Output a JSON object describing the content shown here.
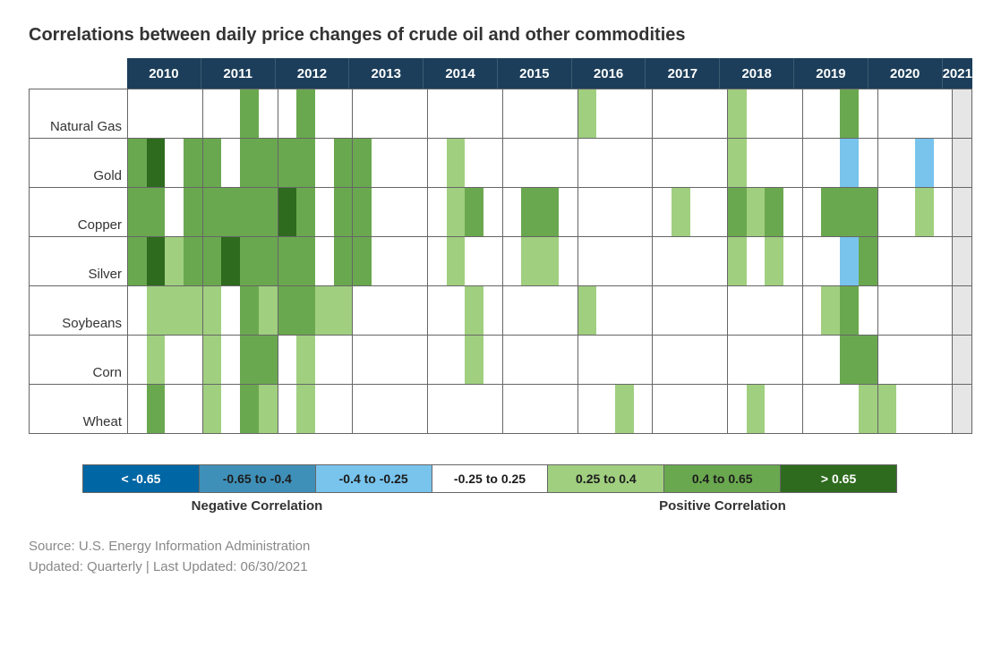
{
  "title": "Correlations between daily price changes of crude oil and other commodities",
  "header_bg": "#1c3e5a",
  "grid_color": "#666666",
  "trailing_bg": "#e6e6e6",
  "color_scale": {
    "very_neg": "#0066a4",
    "neg": "#3f90b8",
    "slight_neg": "#78c4ed",
    "neutral": "#ffffff",
    "slight_pos": "#a0cf7f",
    "pos": "#6aa84f",
    "very_pos": "#2e6b1e"
  },
  "years": [
    "2010",
    "2011",
    "2012",
    "2013",
    "2014",
    "2015",
    "2016",
    "2017",
    "2018",
    "2019",
    "2020",
    "2021"
  ],
  "rows": [
    {
      "label": "Natural Gas",
      "cells": [
        0,
        0,
        0,
        0,
        0,
        0,
        5,
        0,
        0,
        5,
        0,
        0,
        0,
        0,
        0,
        0,
        0,
        0,
        0,
        0,
        0,
        0,
        0,
        0,
        4,
        0,
        0,
        0,
        0,
        0,
        0,
        0,
        4,
        0,
        0,
        0,
        0,
        0,
        5,
        0,
        0,
        0,
        0,
        0,
        0
      ]
    },
    {
      "label": "Gold",
      "cells": [
        5,
        6,
        0,
        5,
        5,
        0,
        5,
        5,
        5,
        5,
        0,
        5,
        5,
        0,
        0,
        0,
        0,
        4,
        0,
        0,
        0,
        0,
        0,
        0,
        0,
        0,
        0,
        0,
        0,
        0,
        0,
        0,
        4,
        0,
        0,
        0,
        0,
        0,
        3,
        0,
        0,
        0,
        3,
        0,
        0
      ]
    },
    {
      "label": "Copper",
      "cells": [
        5,
        5,
        0,
        5,
        5,
        5,
        5,
        5,
        6,
        5,
        0,
        5,
        5,
        0,
        0,
        0,
        0,
        4,
        5,
        0,
        0,
        5,
        5,
        0,
        0,
        0,
        0,
        0,
        0,
        4,
        0,
        0,
        5,
        4,
        5,
        0,
        0,
        5,
        5,
        5,
        0,
        0,
        4,
        0,
        0
      ]
    },
    {
      "label": "Silver",
      "cells": [
        5,
        6,
        4,
        5,
        5,
        6,
        5,
        5,
        5,
        5,
        0,
        5,
        5,
        0,
        0,
        0,
        0,
        4,
        0,
        0,
        0,
        4,
        4,
        0,
        0,
        0,
        0,
        0,
        0,
        0,
        0,
        0,
        4,
        0,
        4,
        0,
        0,
        0,
        3,
        5,
        0,
        0,
        0,
        0,
        0
      ]
    },
    {
      "label": "Soybeans",
      "cells": [
        0,
        4,
        4,
        4,
        4,
        0,
        5,
        4,
        5,
        5,
        4,
        4,
        0,
        0,
        0,
        0,
        0,
        0,
        4,
        0,
        0,
        0,
        0,
        0,
        4,
        0,
        0,
        0,
        0,
        0,
        0,
        0,
        0,
        0,
        0,
        0,
        0,
        4,
        5,
        0,
        0,
        0,
        0,
        0,
        0
      ]
    },
    {
      "label": "Corn",
      "cells": [
        0,
        4,
        0,
        0,
        4,
        0,
        5,
        5,
        0,
        4,
        0,
        0,
        0,
        0,
        0,
        0,
        0,
        0,
        4,
        0,
        0,
        0,
        0,
        0,
        0,
        0,
        0,
        0,
        0,
        0,
        0,
        0,
        0,
        0,
        0,
        0,
        0,
        0,
        5,
        5,
        0,
        0,
        0,
        0,
        0
      ]
    },
    {
      "label": "Wheat",
      "cells": [
        0,
        5,
        0,
        0,
        4,
        0,
        5,
        4,
        0,
        4,
        0,
        0,
        0,
        0,
        0,
        0,
        0,
        0,
        0,
        0,
        0,
        0,
        0,
        0,
        0,
        0,
        4,
        0,
        0,
        0,
        0,
        0,
        0,
        4,
        0,
        0,
        0,
        0,
        0,
        4,
        4,
        0,
        0,
        0,
        0
      ]
    }
  ],
  "quarters_per_year": 4,
  "last_year_quarters": 1,
  "legend": {
    "segments": [
      {
        "label": "< -0.65",
        "bg_key": "very_neg",
        "text": "#ffffff"
      },
      {
        "label": "-0.65 to -0.4",
        "bg_key": "neg",
        "text": "#1c1c1c"
      },
      {
        "label": "-0.4 to -0.25",
        "bg_key": "slight_neg",
        "text": "#1c1c1c"
      },
      {
        "label": "-0.25 to 0.25",
        "bg_key": "neutral",
        "text": "#1c1c1c"
      },
      {
        "label": "0.25 to 0.4",
        "bg_key": "slight_pos",
        "text": "#1c1c1c"
      },
      {
        "label": "0.4 to 0.65",
        "bg_key": "pos",
        "text": "#1c1c1c"
      },
      {
        "label": "> 0.65",
        "bg_key": "very_pos",
        "text": "#ffffff"
      }
    ],
    "neg_label": "Negative Correlation",
    "pos_label": "Positive Correlation"
  },
  "footer": {
    "source": "Source: U.S. Energy Information Administration",
    "updated": "Updated: Quarterly | Last Updated: 06/30/2021"
  }
}
